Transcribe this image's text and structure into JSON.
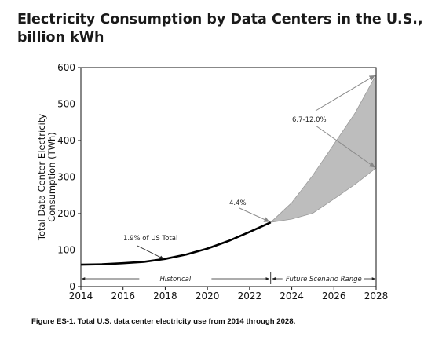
{
  "title": "Electricity Consumption by Data Centers in the U.S., billion kWh",
  "caption": "Figure ES-1. Total U.S. data center electricity use from 2014 through 2028.",
  "chart_data": {
    "type": "area",
    "ylabel": "Total Data Center Electricity Consumption (TWh)",
    "xlabel": "",
    "xlim": [
      2014,
      2028
    ],
    "ylim": [
      0,
      600
    ],
    "xticks": [
      "2014",
      "2016",
      "2018",
      "2020",
      "2022",
      "2024",
      "2026",
      "2028"
    ],
    "yticks": [
      "0",
      "100",
      "200",
      "300",
      "400",
      "500",
      "600"
    ],
    "grid": false,
    "historical": {
      "x": [
        2014,
        2015,
        2016,
        2017,
        2018,
        2019,
        2020,
        2021,
        2022,
        2023
      ],
      "y": [
        60,
        61,
        64,
        68,
        76,
        88,
        104,
        125,
        150,
        176
      ]
    },
    "scenario_range": {
      "x": [
        2023,
        2024,
        2025,
        2026,
        2027,
        2028
      ],
      "low": [
        176,
        185,
        201,
        240,
        280,
        325
      ],
      "high": [
        176,
        230,
        305,
        390,
        475,
        580
      ]
    },
    "annotations": [
      {
        "text": "1.9% of US Total",
        "x": 2018,
        "y": 78
      },
      {
        "text": "4.4%",
        "x": 2023,
        "y": 176
      },
      {
        "text": "6.7-12.0%",
        "x": 2028,
        "y": 580
      },
      {
        "text": "6.7-12.0%",
        "x": 2028,
        "y": 325
      }
    ],
    "spans": [
      {
        "label": "Historical",
        "from": 2014,
        "to": 2023
      },
      {
        "label": "Future Scenario Range",
        "from": 2023,
        "to": 2028
      }
    ],
    "colors": {
      "line": "#000000",
      "range_fill": "#bdbdbd",
      "arrow": "#888888"
    }
  }
}
